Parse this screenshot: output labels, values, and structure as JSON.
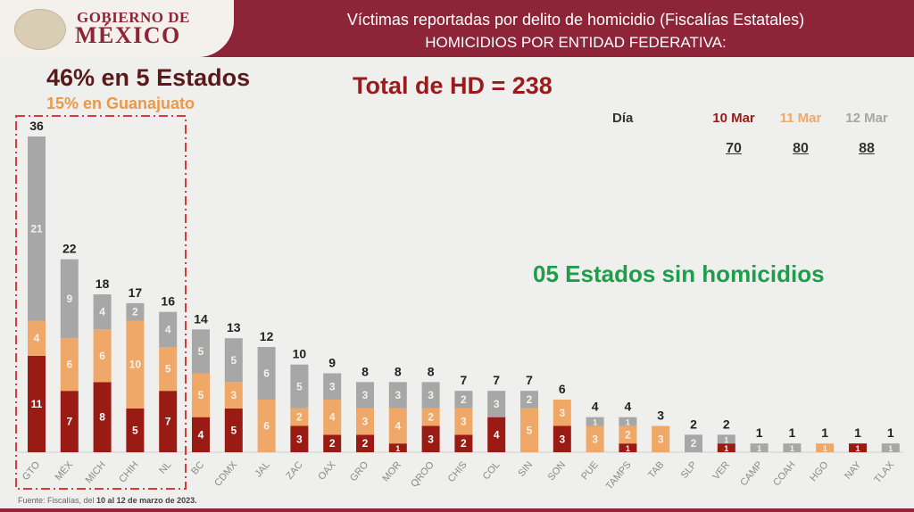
{
  "header": {
    "logo_line1": "GOBIERNO DE",
    "logo_line2": "MÉXICO",
    "title": "Víctimas reportadas por delito de homicidio (Fiscalías Estatales)",
    "subtitle": "HOMICIDIOS POR ENTIDAD FEDERATIVA:"
  },
  "annotations": {
    "concentration": "46% en 5 Estados",
    "guanajuato": "15% en Guanajuato",
    "total": "Total de HD = 238",
    "no_homicides": "05 Estados sin homicidios",
    "day_label": "Día"
  },
  "daily_totals": [
    {
      "day": "10 Mar",
      "total": "70"
    },
    {
      "day": "11 Mar",
      "total": "80"
    },
    {
      "day": "12 Mar",
      "total": "88"
    }
  ],
  "source": {
    "prefix": "Fuente: Fiscalías, del ",
    "bold": "10 al 12 de marzo de 2023."
  },
  "colors": {
    "mar10": "#9a1b14",
    "mar11": "#f0a868",
    "mar12": "#a7a7a7",
    "header": "#8e2437",
    "highlight_box": "#d93a3a"
  },
  "chart_data": {
    "type": "bar",
    "stacked": true,
    "title": "HOMICIDIOS POR ENTIDAD FEDERATIVA",
    "xlabel": "",
    "ylabel": "",
    "ylim": [
      0,
      36
    ],
    "grid": false,
    "highlighted_categories": [
      "GTO",
      "MÉX",
      "MICH",
      "CHIH",
      "NL"
    ],
    "categories": [
      "GTO",
      "MÉX",
      "MICH",
      "CHIH",
      "NL",
      "BC",
      "CDMX",
      "JAL",
      "ZAC",
      "OAX",
      "GRO",
      "MOR",
      "QROO",
      "CHIS",
      "COL",
      "SIN",
      "SON",
      "PUE",
      "TAMPS",
      "TAB",
      "SLP",
      "VER",
      "CAMP",
      "COAH",
      "HGO",
      "NAY",
      "TLAX"
    ],
    "series": [
      {
        "name": "10 Mar",
        "values": [
          11,
          7,
          8,
          5,
          7,
          4,
          5,
          0,
          3,
          2,
          2,
          1,
          3,
          2,
          4,
          0,
          3,
          0,
          1,
          0,
          0,
          1,
          0,
          0,
          0,
          1,
          0
        ]
      },
      {
        "name": "11 Mar",
        "values": [
          4,
          6,
          6,
          10,
          5,
          5,
          3,
          6,
          2,
          4,
          3,
          4,
          2,
          3,
          0,
          5,
          3,
          3,
          2,
          3,
          0,
          0,
          0,
          0,
          1,
          0,
          0
        ]
      },
      {
        "name": "12 Mar",
        "values": [
          21,
          9,
          4,
          2,
          4,
          5,
          5,
          6,
          5,
          3,
          3,
          3,
          3,
          2,
          3,
          2,
          0,
          1,
          1,
          0,
          2,
          1,
          1,
          1,
          0,
          0,
          1
        ]
      }
    ],
    "totals": [
      36,
      22,
      18,
      17,
      16,
      14,
      13,
      12,
      10,
      9,
      8,
      8,
      8,
      7,
      7,
      7,
      6,
      4,
      4,
      3,
      2,
      2,
      1,
      1,
      1,
      1,
      1
    ]
  }
}
